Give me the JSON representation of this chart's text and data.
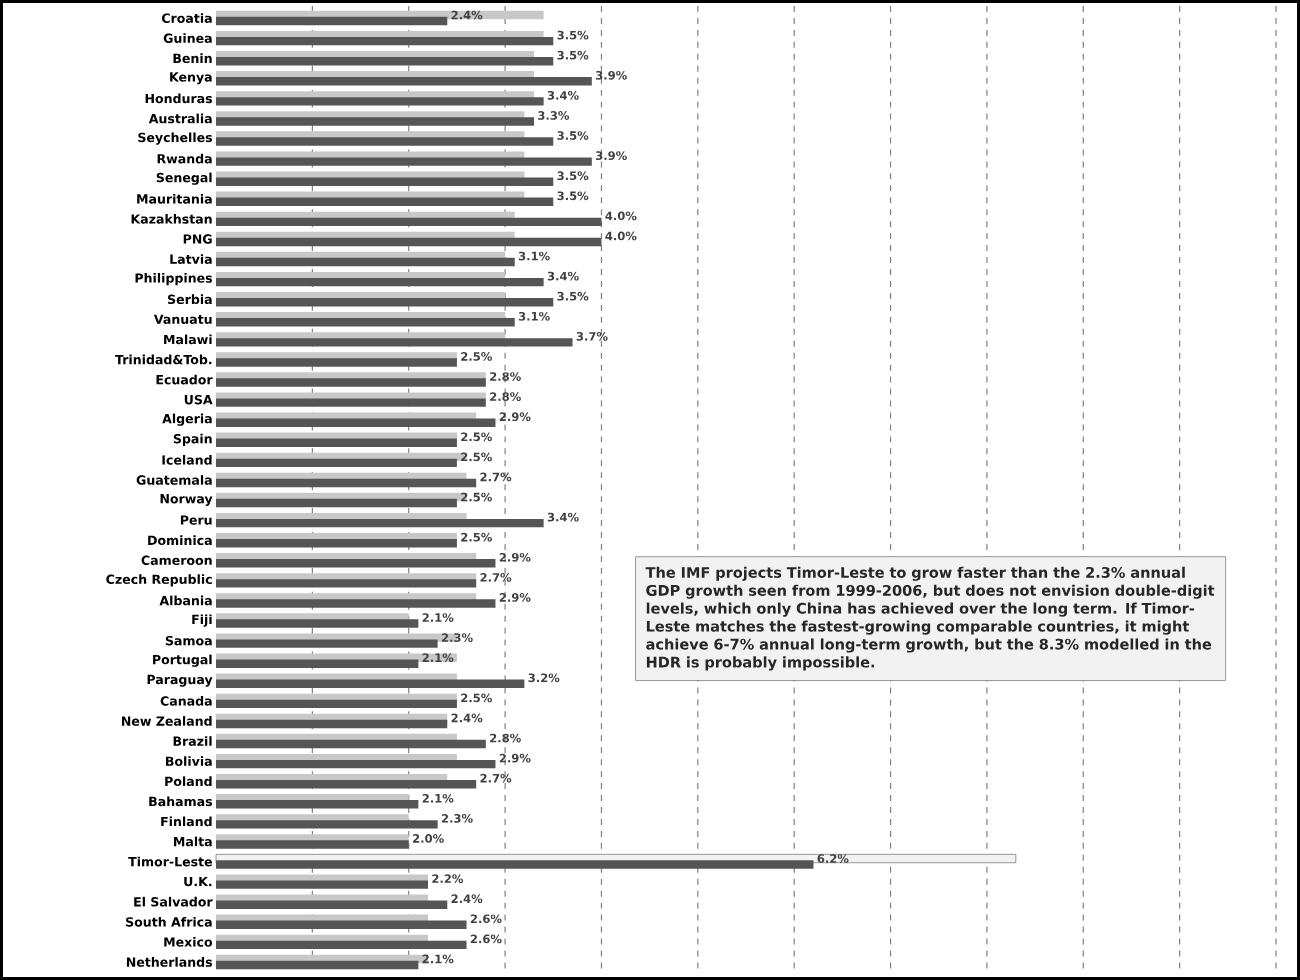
{
  "chart_data": {
    "type": "bar",
    "orientation": "horizontal",
    "categories": [
      "Croatia",
      "Guinea",
      "Benin",
      "Kenya",
      "Honduras",
      "Australia",
      "Seychelles",
      "Rwanda",
      "Senegal",
      "Mauritania",
      "Kazakhstan",
      "PNG",
      "Latvia",
      "Philippines",
      "Serbia",
      "Vanuatu",
      "Malawi",
      "Trinidad&Tob.",
      "Ecuador",
      "USA",
      "Algeria",
      "Spain",
      "Iceland",
      "Guatemala",
      "Norway",
      "Peru",
      "Dominica",
      "Cameroon",
      "Czech Republic",
      "Albania",
      "Fiji",
      "Samoa",
      "Portugal",
      "Paraguay",
      "Canada",
      "New Zealand",
      "Brazil",
      "Bolivia",
      "Poland",
      "Bahamas",
      "Finland",
      "Malta",
      "Timor-Leste",
      "U.K.",
      "El Salvador",
      "South Africa",
      "Mexico",
      "Netherlands"
    ],
    "series": [
      {
        "color": "#c8c8c8",
        "colors": [
          "#c8c8c8",
          "#c8c8c8",
          "#c8c8c8",
          "#c8c8c8",
          "#c8c8c8",
          "#c8c8c8",
          "#c8c8c8",
          "#c8c8c8",
          "#c8c8c8",
          "#c8c8c8",
          "#c8c8c8",
          "#c8c8c8",
          "#c8c8c8",
          "#c8c8c8",
          "#c8c8c8",
          "#c8c8c8",
          "#c8c8c8",
          "#c8c8c8",
          "#c8c8c8",
          "#c8c8c8",
          "#c8c8c8",
          "#c8c8c8",
          "#c8c8c8",
          "#c8c8c8",
          "#c8c8c8",
          "#c8c8c8",
          "#c8c8c8",
          "#c8c8c8",
          "#c8c8c8",
          "#c8c8c8",
          "#c8c8c8",
          "#c8c8c8",
          "#c8c8c8",
          "#c8c8c8",
          "#c8c8c8",
          "#c8c8c8",
          "#c8c8c8",
          "#c8c8c8",
          "#c8c8c8",
          "#c8c8c8",
          "#c8c8c8",
          "#c8c8c8",
          "#f2f2f2",
          "#c8c8c8",
          "#c8c8c8",
          "#c8c8c8",
          "#c8c8c8",
          "#c8c8c8"
        ],
        "values": [
          3.4,
          3.4,
          3.3,
          3.3,
          3.3,
          3.2,
          3.2,
          3.2,
          3.2,
          3.2,
          3.1,
          3.1,
          3.0,
          3.0,
          3.0,
          3.0,
          3.0,
          2.5,
          2.8,
          2.8,
          2.7,
          2.5,
          2.6,
          2.6,
          2.6,
          2.6,
          2.5,
          2.7,
          2.7,
          2.7,
          2.0,
          2.5,
          2.5,
          2.5,
          2.5,
          2.4,
          2.5,
          2.5,
          2.4,
          2.0,
          2.0,
          2.0,
          8.3,
          2.2,
          2.2,
          2.2,
          2.2,
          2.2
        ]
      },
      {
        "color": "#555555",
        "values": [
          2.4,
          3.5,
          3.5,
          3.9,
          3.4,
          3.3,
          3.5,
          3.9,
          3.5,
          3.5,
          4.0,
          4.0,
          3.1,
          3.4,
          3.5,
          3.1,
          3.7,
          2.5,
          2.8,
          2.8,
          2.9,
          2.5,
          2.5,
          2.7,
          2.5,
          3.4,
          2.5,
          2.9,
          2.7,
          2.9,
          2.1,
          2.3,
          2.1,
          3.2,
          2.5,
          2.4,
          2.8,
          2.9,
          2.7,
          2.1,
          2.3,
          2.0,
          6.2,
          2.2,
          2.4,
          2.6,
          2.6,
          2.1
        ],
        "value_labels": [
          "2.4%",
          "3.5%",
          "3.5%",
          "3.9%",
          "3.4%",
          "3.3%",
          "3.5%",
          "3.9%",
          "3.5%",
          "3.5%",
          "4.0%",
          "4.0%",
          "3.1%",
          "3.4%",
          "3.5%",
          "3.1%",
          "3.7%",
          "2.5%",
          "2.8%",
          "2.8%",
          "2.9%",
          "2.5%",
          "2.5%",
          "2.7%",
          "2.5%",
          "3.4%",
          "2.5%",
          "2.9%",
          "2.7%",
          "2.9%",
          "2.1%",
          "2.3%",
          "2.1%",
          "3.2%",
          "2.5%",
          "2.4%",
          "2.8%",
          "2.9%",
          "2.7%",
          "2.1%",
          "2.3%",
          "2.0%",
          "6.2%",
          "2.2%",
          "2.4%",
          "2.6%",
          "2.6%",
          "2.1%"
        ]
      }
    ],
    "xlim": [
      0,
      11
    ],
    "xticks": [
      {
        "value": 1,
        "label": null
      },
      {
        "value": 2,
        "label": null
      },
      {
        "value": 3,
        "label": null
      },
      {
        "value": 4,
        "label": null
      },
      {
        "value": 5,
        "label": null
      },
      {
        "value": 6,
        "label": null
      },
      {
        "value": 7,
        "label": null
      },
      {
        "value": 8,
        "label": null
      },
      {
        "value": 9,
        "label": null
      },
      {
        "value": 10,
        "label": null
      },
      {
        "value": 11,
        "label": null
      }
    ],
    "grid": "x",
    "tick_labels": "y",
    "annotations": [
      "The IMF projects Timor-Leste to grow faster than the 2.3% annual GDP growth seen from 1999-2006, but does not envision double-digit levels, which only China has achieved over the long term. If Timor-Leste matches the fastest-growing comparable countries, it might achieve 6-7% annual long-term growth, but the 8.3% modelled in the HDR is probably impossible."
    ]
  }
}
